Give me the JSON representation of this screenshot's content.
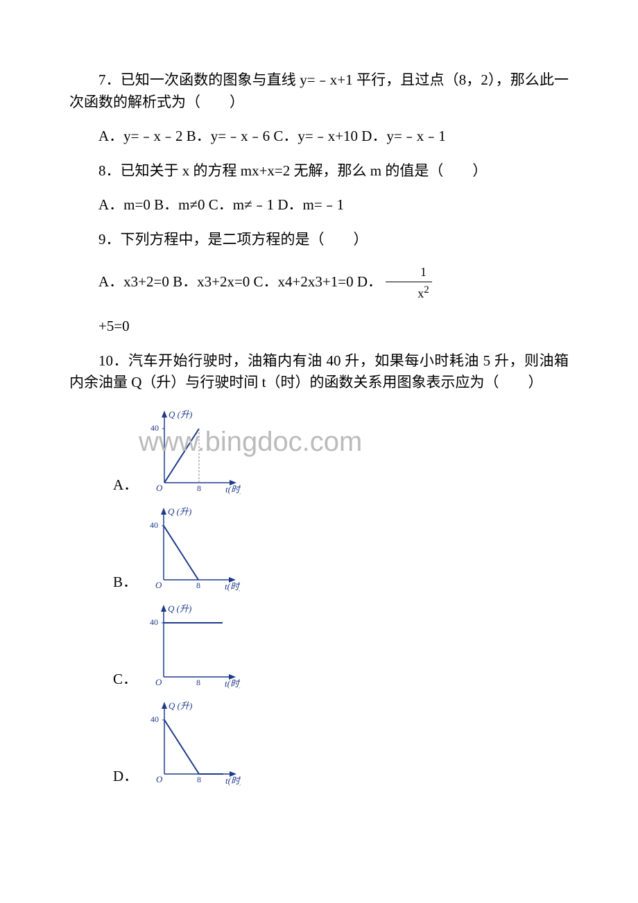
{
  "q7": {
    "text": "7．已知一次函数的图象与直线 y=﹣x+1 平行，且过点（8，2），那么此一次函数的解析式为（　　）",
    "options": "A．y=﹣x﹣2 B．y=﹣x﹣6 C．y=﹣x+10 D．y=﹣x﹣1"
  },
  "q8": {
    "text": "8．已知关于 x 的方程 mx+x=2 无解，那么 m 的值是（　　）",
    "options": "A．m=0 B．m≠0 C．m≠﹣1 D．m=﹣1"
  },
  "q9": {
    "text": "9．下列方程中，是二项方程的是（　　）",
    "optA": "A．x3+2=0 B．x3+2x=0 C．x4+2x3+1=0 D．",
    "frac_num": "1",
    "frac_den_base": "x",
    "frac_den_exp": "2",
    "extra": "+5=0"
  },
  "q10": {
    "text": "10．汽车开始行驶时，油箱内有油 40 升，如果每小时耗油 5 升，则油箱内余油量 Q（升）与行驶时间 t（时）的函数关系用图象表示应为（　　）",
    "labels": {
      "a": "A．",
      "b": "B．",
      "c": "C．",
      "d": "D．"
    }
  },
  "watermark": "www.bingdoc.com",
  "graph": {
    "y_axis_label": "Q (升)",
    "x_axis_label": "t(时)",
    "y_tick": "40",
    "x_tick": "8",
    "origin": "O",
    "colors": {
      "axis": "#1e3a8a",
      "line": "#1e3a8a",
      "text": "#1e3a8a",
      "tick": "#888888"
    }
  }
}
